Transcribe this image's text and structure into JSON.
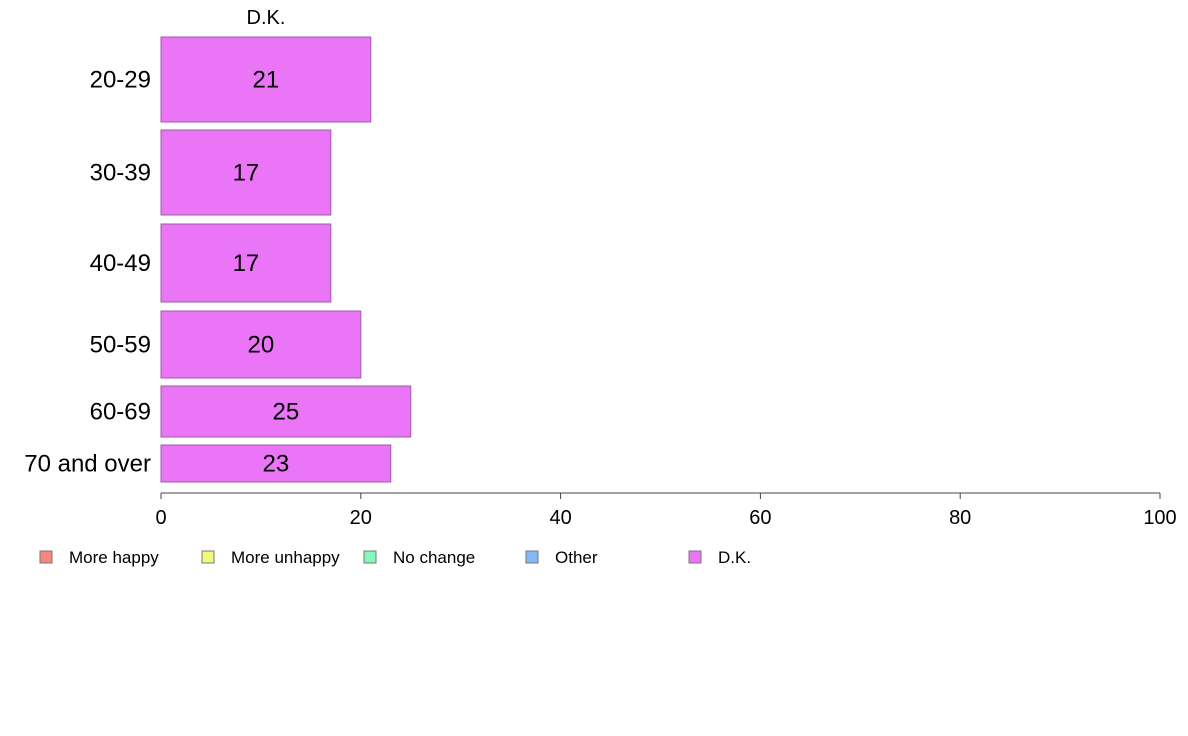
{
  "chart_data": {
    "type": "bar",
    "orientation": "horizontal",
    "column_header": "D.K.",
    "categories": [
      "20-29",
      "30-39",
      "40-49",
      "50-59",
      "60-69",
      "70 and over"
    ],
    "series": [
      {
        "name": "D.K.",
        "values": [
          21,
          17,
          17,
          20,
          25,
          23
        ]
      }
    ],
    "data_labels": [
      "21",
      "17",
      "17",
      "20",
      "25",
      "23"
    ],
    "xlim": [
      0,
      100
    ],
    "xticks": [
      0,
      20,
      40,
      60,
      80,
      100
    ],
    "xtick_labels": [
      "0",
      "20",
      "40",
      "60",
      "80",
      "100"
    ],
    "bar_color": "#eb75f7",
    "grid": false,
    "legend_position": "bottom",
    "legend": [
      {
        "label": "More happy",
        "color": "#f7877e"
      },
      {
        "label": "More unhappy",
        "color": "#eff97a"
      },
      {
        "label": "No change",
        "color": "#86f8bc"
      },
      {
        "label": "Other",
        "color": "#86b8f8"
      },
      {
        "label": "D.K.",
        "color": "#eb75f7"
      }
    ]
  }
}
